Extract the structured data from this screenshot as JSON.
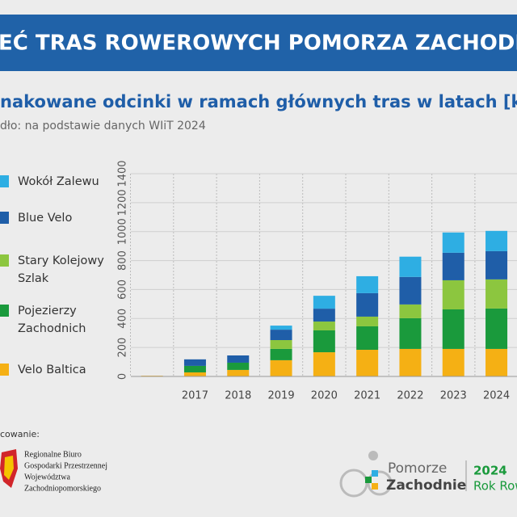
{
  "chart_data": {
    "type": "stacked-bar",
    "title": "EĆ TRAS ROWEROWYCH POMORZA ZACHODNIEGO",
    "subtitle": "nakowane odcinki w ramach głównych tras w latach [km]",
    "source": "dło: na podstawie danych WIiT 2024",
    "categories": [
      null,
      "2017",
      "2018",
      "2019",
      "2020",
      "2021",
      "2022",
      "2023",
      "2024"
    ],
    "series": [
      {
        "name": "Wokół Zalewu",
        "color": "#2eaee3",
        "values": [
          0,
          0,
          0,
          28,
          89,
          117,
          140,
          140,
          140
        ]
      },
      {
        "name": "Blue Velo",
        "color": "#1f5ea8",
        "values": [
          0,
          45,
          50,
          72,
          89,
          162,
          190,
          190,
          195
        ]
      },
      {
        "name": "Stary Kolejowy Szlak",
        "color": "#8cc63f",
        "values": [
          0,
          0,
          0,
          61,
          61,
          67,
          95,
          201,
          201
        ]
      },
      {
        "name": "Pojezierzy Zachodnich",
        "color": "#1a9a3c",
        "values": [
          0,
          45,
          50,
          78,
          151,
          162,
          212,
          273,
          279
        ]
      },
      {
        "name": "Velo Baltica",
        "color": "#f5b014",
        "values": [
          5,
          28,
          45,
          112,
          167,
          184,
          190,
          190,
          190
        ]
      }
    ],
    "ylim": [
      0,
      1400
    ],
    "yticks": [
      0,
      200,
      400,
      600,
      800,
      1000,
      1200,
      1400
    ],
    "grid": true
  },
  "footer": {
    "credit": "cowanie:",
    "office": [
      "Regionalne Biuro",
      "Gospodarki Przestrzennej",
      "Województwa",
      "Zachodniopomorskiego"
    ],
    "brand": [
      "Pomorze",
      "Zachodnie"
    ],
    "year": "2024",
    "slogan": "Rok Rowe"
  }
}
